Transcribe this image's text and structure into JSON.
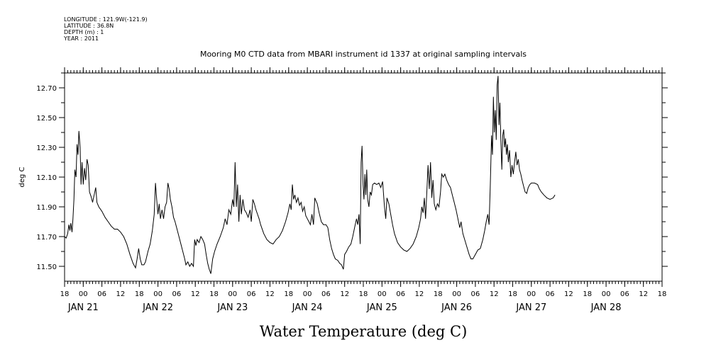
{
  "header": {
    "longitude": "LONGITUDE : 121.9W(-121.9)",
    "latitude": "LATITUDE : 36.8N",
    "depth": "DEPTH (m) : 1",
    "year": "YEAR : 2011"
  },
  "chart_data": {
    "type": "line",
    "title": "Mooring M0 CTD data from MBARI instrument id 1337 at original sampling intervals",
    "xlabel": "Water Temperature (deg C)",
    "ylabel": "deg C",
    "x_unit": "hours",
    "xlim": [
      -6,
      186
    ],
    "ylim": [
      11.4,
      12.8
    ],
    "yticks": [
      11.5,
      11.7,
      11.9,
      12.1,
      12.3,
      12.5,
      12.7
    ],
    "ytick_labels": [
      "11.50",
      "11.70",
      "11.90",
      "12.10",
      "12.30",
      "12.50",
      "12.70"
    ],
    "hour_ticks": [
      -6,
      0,
      6,
      12,
      18,
      24,
      30,
      36,
      42,
      48,
      54,
      60,
      66,
      72,
      78,
      84,
      90,
      96,
      102,
      108,
      114,
      120,
      126,
      132,
      138,
      144,
      150,
      156,
      162,
      168,
      174,
      180,
      186
    ],
    "hour_labels": [
      "18",
      "00",
      "06",
      "12",
      "18",
      "00",
      "06",
      "12",
      "18",
      "00",
      "06",
      "12",
      "18",
      "00",
      "06",
      "12",
      "18",
      "00",
      "06",
      "12",
      "18",
      "00",
      "06",
      "12",
      "18",
      "00",
      "06",
      "12",
      "18",
      "00",
      "06",
      "12",
      "18"
    ],
    "day_labels": [
      {
        "x": 0,
        "label": "JAN 21"
      },
      {
        "x": 24,
        "label": "JAN 22"
      },
      {
        "x": 48,
        "label": "JAN 23"
      },
      {
        "x": 72,
        "label": "JAN 24"
      },
      {
        "x": 96,
        "label": "JAN 25"
      },
      {
        "x": 120,
        "label": "JAN 26"
      },
      {
        "x": 144,
        "label": "JAN 27"
      },
      {
        "x": 168,
        "label": "JAN 28"
      }
    ],
    "grid": false,
    "legend": "none",
    "series": [
      {
        "color": "#000000",
        "points": [
          [
            -6,
            11.7
          ],
          [
            -5.5,
            11.69
          ],
          [
            -5,
            11.72
          ],
          [
            -4.6,
            11.78
          ],
          [
            -4.3,
            11.74
          ],
          [
            -4.0,
            11.79
          ],
          [
            -3.6,
            11.73
          ],
          [
            -3.3,
            11.82
          ],
          [
            -3.0,
            11.95
          ],
          [
            -2.7,
            12.15
          ],
          [
            -2.3,
            12.1
          ],
          [
            -2.0,
            12.32
          ],
          [
            -1.7,
            12.25
          ],
          [
            -1.4,
            12.41
          ],
          [
            -1.0,
            12.3
          ],
          [
            -0.7,
            12.05
          ],
          [
            -0.4,
            12.2
          ],
          [
            0.0,
            12.05
          ],
          [
            0.4,
            12.16
          ],
          [
            0.8,
            12.08
          ],
          [
            1.2,
            12.22
          ],
          [
            1.6,
            12.18
          ],
          [
            2.0,
            12.0
          ],
          [
            2.5,
            11.97
          ],
          [
            3.0,
            11.93
          ],
          [
            3.5,
            11.98
          ],
          [
            4.0,
            12.03
          ],
          [
            4.4,
            11.93
          ],
          [
            5.0,
            11.9
          ],
          [
            6.0,
            11.87
          ],
          [
            7.0,
            11.83
          ],
          [
            8.0,
            11.8
          ],
          [
            9.0,
            11.77
          ],
          [
            10.0,
            11.75
          ],
          [
            11.0,
            11.75
          ],
          [
            12.0,
            11.73
          ],
          [
            13.0,
            11.7
          ],
          [
            14.0,
            11.65
          ],
          [
            15.0,
            11.58
          ],
          [
            16.0,
            11.52
          ],
          [
            16.8,
            11.49
          ],
          [
            17.3,
            11.55
          ],
          [
            17.8,
            11.62
          ],
          [
            18.3,
            11.55
          ],
          [
            18.8,
            11.51
          ],
          [
            19.5,
            11.51
          ],
          [
            20.0,
            11.53
          ],
          [
            20.8,
            11.6
          ],
          [
            21.5,
            11.65
          ],
          [
            22.2,
            11.74
          ],
          [
            22.8,
            11.85
          ],
          [
            23.2,
            12.06
          ],
          [
            23.6,
            11.95
          ],
          [
            24.0,
            11.85
          ],
          [
            24.4,
            11.92
          ],
          [
            24.8,
            11.82
          ],
          [
            25.3,
            11.88
          ],
          [
            25.8,
            11.82
          ],
          [
            26.3,
            11.9
          ],
          [
            26.8,
            11.93
          ],
          [
            27.2,
            12.06
          ],
          [
            27.6,
            12.02
          ],
          [
            28.0,
            11.95
          ],
          [
            28.5,
            11.9
          ],
          [
            29.0,
            11.83
          ],
          [
            29.5,
            11.8
          ],
          [
            30.0,
            11.76
          ],
          [
            31.0,
            11.68
          ],
          [
            32.0,
            11.6
          ],
          [
            32.6,
            11.55
          ],
          [
            33.0,
            11.51
          ],
          [
            33.6,
            11.53
          ],
          [
            34.2,
            11.5
          ],
          [
            34.8,
            11.52
          ],
          [
            35.4,
            11.5
          ],
          [
            35.8,
            11.68
          ],
          [
            36.2,
            11.64
          ],
          [
            36.6,
            11.68
          ],
          [
            37.2,
            11.66
          ],
          [
            37.8,
            11.7
          ],
          [
            38.4,
            11.68
          ],
          [
            39.0,
            11.65
          ],
          [
            39.5,
            11.58
          ],
          [
            40.0,
            11.52
          ],
          [
            40.5,
            11.48
          ],
          [
            41.0,
            11.45
          ],
          [
            41.6,
            11.55
          ],
          [
            42.2,
            11.6
          ],
          [
            43.0,
            11.65
          ],
          [
            44.0,
            11.7
          ],
          [
            45.0,
            11.76
          ],
          [
            45.6,
            11.82
          ],
          [
            46.2,
            11.78
          ],
          [
            46.8,
            11.88
          ],
          [
            47.4,
            11.85
          ],
          [
            48.0,
            11.95
          ],
          [
            48.4,
            11.9
          ],
          [
            48.8,
            12.2
          ],
          [
            49.2,
            11.9
          ],
          [
            49.6,
            12.05
          ],
          [
            50.0,
            11.8
          ],
          [
            50.4,
            11.98
          ],
          [
            50.8,
            11.85
          ],
          [
            51.3,
            11.95
          ],
          [
            51.8,
            11.88
          ],
          [
            52.4,
            11.86
          ],
          [
            53.0,
            11.83
          ],
          [
            53.6,
            11.88
          ],
          [
            54.0,
            11.8
          ],
          [
            54.5,
            11.95
          ],
          [
            55.0,
            11.92
          ],
          [
            55.5,
            11.88
          ],
          [
            56.0,
            11.85
          ],
          [
            56.5,
            11.82
          ],
          [
            57.0,
            11.78
          ],
          [
            58.0,
            11.72
          ],
          [
            59.0,
            11.68
          ],
          [
            60.0,
            11.66
          ],
          [
            61.0,
            11.65
          ],
          [
            62.0,
            11.68
          ],
          [
            63.0,
            11.7
          ],
          [
            64.0,
            11.74
          ],
          [
            65.0,
            11.8
          ],
          [
            65.8,
            11.86
          ],
          [
            66.4,
            11.92
          ],
          [
            66.8,
            11.88
          ],
          [
            67.2,
            12.05
          ],
          [
            67.6,
            11.95
          ],
          [
            68.0,
            11.98
          ],
          [
            68.5,
            11.93
          ],
          [
            69.0,
            11.96
          ],
          [
            69.5,
            11.91
          ],
          [
            70.0,
            11.93
          ],
          [
            70.5,
            11.87
          ],
          [
            71.0,
            11.9
          ],
          [
            71.5,
            11.84
          ],
          [
            72.0,
            11.82
          ],
          [
            72.5,
            11.8
          ],
          [
            73.0,
            11.78
          ],
          [
            73.5,
            11.85
          ],
          [
            74.0,
            11.78
          ],
          [
            74.4,
            11.96
          ],
          [
            74.8,
            11.94
          ],
          [
            75.2,
            11.92
          ],
          [
            75.8,
            11.86
          ],
          [
            76.5,
            11.8
          ],
          [
            77.2,
            11.78
          ],
          [
            78.0,
            11.78
          ],
          [
            78.6,
            11.76
          ],
          [
            79.2,
            11.68
          ],
          [
            79.8,
            11.62
          ],
          [
            80.4,
            11.58
          ],
          [
            81.0,
            11.55
          ],
          [
            81.8,
            11.54
          ],
          [
            82.4,
            11.52
          ],
          [
            83.0,
            11.51
          ],
          [
            83.6,
            11.48
          ],
          [
            84.0,
            11.58
          ],
          [
            84.6,
            11.6
          ],
          [
            85.3,
            11.63
          ],
          [
            86.0,
            11.65
          ],
          [
            86.6,
            11.7
          ],
          [
            87.2,
            11.76
          ],
          [
            87.8,
            11.82
          ],
          [
            88.2,
            11.78
          ],
          [
            88.6,
            11.85
          ],
          [
            89.0,
            11.65
          ],
          [
            89.3,
            12.2
          ],
          [
            89.6,
            12.31
          ],
          [
            89.9,
            12.05
          ],
          [
            90.2,
            11.95
          ],
          [
            90.5,
            12.12
          ],
          [
            90.8,
            11.98
          ],
          [
            91.1,
            12.15
          ],
          [
            91.4,
            11.95
          ],
          [
            91.8,
            11.9
          ],
          [
            92.2,
            12.0
          ],
          [
            92.6,
            11.98
          ],
          [
            93.0,
            12.05
          ],
          [
            93.6,
            12.06
          ],
          [
            94.3,
            12.05
          ],
          [
            95.0,
            12.06
          ],
          [
            95.6,
            12.03
          ],
          [
            96.2,
            12.07
          ],
          [
            96.8,
            11.9
          ],
          [
            97.2,
            11.82
          ],
          [
            97.6,
            11.96
          ],
          [
            98.2,
            11.92
          ],
          [
            98.8,
            11.85
          ],
          [
            99.4,
            11.78
          ],
          [
            100.0,
            11.72
          ],
          [
            101.0,
            11.66
          ],
          [
            102.0,
            11.63
          ],
          [
            103.0,
            11.61
          ],
          [
            104.0,
            11.6
          ],
          [
            105.0,
            11.62
          ],
          [
            106.0,
            11.65
          ],
          [
            107.0,
            11.7
          ],
          [
            107.8,
            11.76
          ],
          [
            108.4,
            11.82
          ],
          [
            108.8,
            11.9
          ],
          [
            109.2,
            11.86
          ],
          [
            109.6,
            11.96
          ],
          [
            110.0,
            11.82
          ],
          [
            110.4,
            12.0
          ],
          [
            110.8,
            12.18
          ],
          [
            111.2,
            12.02
          ],
          [
            111.6,
            12.2
          ],
          [
            112.0,
            11.96
          ],
          [
            112.4,
            12.08
          ],
          [
            112.8,
            11.92
          ],
          [
            113.3,
            11.88
          ],
          [
            113.8,
            11.92
          ],
          [
            114.3,
            11.9
          ],
          [
            114.8,
            12.0
          ],
          [
            115.2,
            12.12
          ],
          [
            115.7,
            12.1
          ],
          [
            116.2,
            12.12
          ],
          [
            116.8,
            12.08
          ],
          [
            117.4,
            12.05
          ],
          [
            118.0,
            12.03
          ],
          [
            118.6,
            11.98
          ],
          [
            119.2,
            11.93
          ],
          [
            119.8,
            11.88
          ],
          [
            120.4,
            11.82
          ],
          [
            121.0,
            11.76
          ],
          [
            121.4,
            11.8
          ],
          [
            122.0,
            11.72
          ],
          [
            123.0,
            11.65
          ],
          [
            124.0,
            11.58
          ],
          [
            124.6,
            11.55
          ],
          [
            125.2,
            11.55
          ],
          [
            126.0,
            11.58
          ],
          [
            126.8,
            11.61
          ],
          [
            127.6,
            11.62
          ],
          [
            128.4,
            11.68
          ],
          [
            129.0,
            11.74
          ],
          [
            129.5,
            11.8
          ],
          [
            130.0,
            11.85
          ],
          [
            130.4,
            11.78
          ],
          [
            130.8,
            12.04
          ],
          [
            131.2,
            12.38
          ],
          [
            131.5,
            12.25
          ],
          [
            131.8,
            12.64
          ],
          [
            132.1,
            12.4
          ],
          [
            132.4,
            12.55
          ],
          [
            132.7,
            12.35
          ],
          [
            133.0,
            12.72
          ],
          [
            133.3,
            12.78
          ],
          [
            133.6,
            12.45
          ],
          [
            133.9,
            12.6
          ],
          [
            134.2,
            12.35
          ],
          [
            134.5,
            12.15
          ],
          [
            134.8,
            12.38
          ],
          [
            135.1,
            12.42
          ],
          [
            135.4,
            12.3
          ],
          [
            135.7,
            12.36
          ],
          [
            136.0,
            12.25
          ],
          [
            136.3,
            12.32
          ],
          [
            136.6,
            12.2
          ],
          [
            137.0,
            12.28
          ],
          [
            137.4,
            12.1
          ],
          [
            137.8,
            12.18
          ],
          [
            138.2,
            12.12
          ],
          [
            138.6,
            12.2
          ],
          [
            139.0,
            12.27
          ],
          [
            139.4,
            12.18
          ],
          [
            139.8,
            12.22
          ],
          [
            140.2,
            12.15
          ],
          [
            140.6,
            12.12
          ],
          [
            141.0,
            12.08
          ],
          [
            141.5,
            12.04
          ],
          [
            142.0,
            12.0
          ],
          [
            142.5,
            11.99
          ],
          [
            143.0,
            12.03
          ],
          [
            143.5,
            12.05
          ],
          [
            144.0,
            12.06
          ],
          [
            145.0,
            12.06
          ],
          [
            146.0,
            12.05
          ],
          [
            146.6,
            12.02
          ],
          [
            147.2,
            12.0
          ],
          [
            148.0,
            11.98
          ],
          [
            149.0,
            11.96
          ],
          [
            150.0,
            11.95
          ],
          [
            151.0,
            11.96
          ],
          [
            151.6,
            11.98
          ]
        ]
      }
    ]
  }
}
